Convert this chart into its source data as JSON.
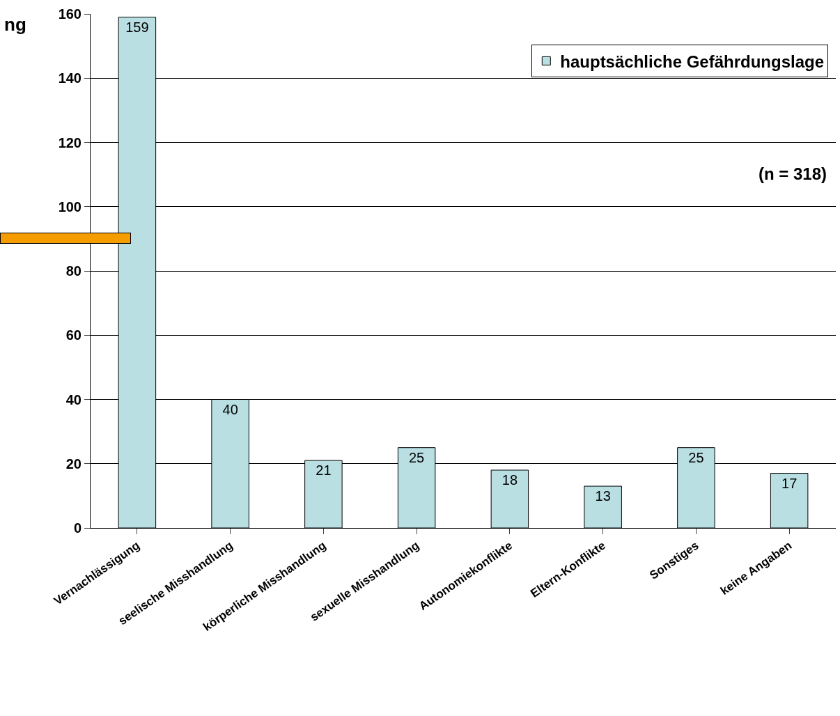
{
  "chart_data": {
    "type": "bar",
    "title": "ng",
    "categories": [
      "Vernachlässigung",
      "seelische Misshandlung",
      "körperliche Misshandlung",
      "sexuelle Misshandlung",
      "Autonomiekonflikte",
      "Eltern-Konflikte",
      "Sonstiges",
      "keine Angaben"
    ],
    "series": [
      {
        "name": "hauptsächliche Gefährdungslage",
        "color": "#b9dfe3",
        "values": [
          159,
          40,
          21,
          25,
          18,
          13,
          25,
          17
        ]
      }
    ],
    "data_labels": true,
    "ylim": [
      0,
      160
    ],
    "yticks": [
      0,
      20,
      40,
      60,
      80,
      100,
      120,
      140,
      160
    ],
    "grid": "y",
    "legend": "top right",
    "annotations": [
      "(n = 318)"
    ]
  }
}
